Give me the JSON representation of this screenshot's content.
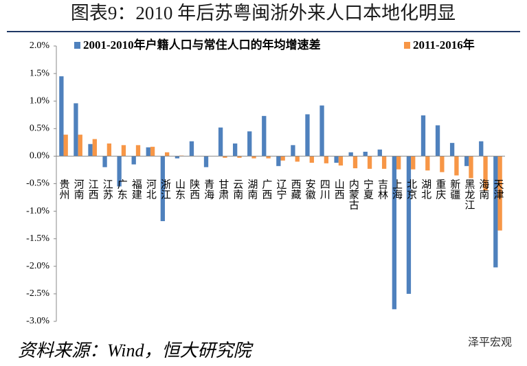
{
  "title": "图表9：2010 年后苏粤闽浙外来人口本地化明显",
  "source": "资料来源：Wind，恒大研究院",
  "watermark": "泽平宏观",
  "chart_data": {
    "type": "bar",
    "categories": [
      "贵州",
      "河南",
      "江西",
      "江苏",
      "广东",
      "福建",
      "河北",
      "浙江",
      "山东",
      "陕西",
      "青海",
      "甘肃",
      "云南",
      "湖南",
      "广西",
      "辽宁",
      "西藏",
      "安徽",
      "四川",
      "山西",
      "内蒙古",
      "宁夏",
      "吉林",
      "上海",
      "北京",
      "湖北",
      "重庆",
      "新疆",
      "黑龙江",
      "海南",
      "天津"
    ],
    "series": [
      {
        "name": "2001-2010年户籍人口与常住人口的年均增速差",
        "color": "#4f81bd",
        "values": [
          1.45,
          0.96,
          0.22,
          -0.2,
          -0.55,
          -0.15,
          0.16,
          -1.18,
          -0.04,
          0.27,
          -0.2,
          0.52,
          0.23,
          0.45,
          0.73,
          -0.18,
          0.2,
          0.76,
          0.92,
          -0.12,
          0.07,
          0.08,
          0.12,
          -2.78,
          -2.5,
          0.74,
          0.56,
          0.24,
          -0.18,
          0.27,
          -2.02
        ]
      },
      {
        "name": "2011-2016年",
        "color": "#f79646",
        "values": [
          0.39,
          0.39,
          0.31,
          0.23,
          0.2,
          0.2,
          0.17,
          0.07,
          0.01,
          0.0,
          0.0,
          -0.03,
          -0.03,
          -0.04,
          -0.04,
          -0.08,
          -0.1,
          -0.12,
          -0.13,
          -0.17,
          -0.22,
          -0.23,
          -0.23,
          -0.24,
          -0.24,
          -0.26,
          -0.29,
          -0.35,
          -0.4,
          -0.62,
          -1.35
        ]
      }
    ],
    "ylim": [
      -3,
      2
    ],
    "yticks": [
      {
        "value": 2,
        "label": "2.0%"
      },
      {
        "value": 1.5,
        "label": "1.5%"
      },
      {
        "value": 1,
        "label": "1.0%"
      },
      {
        "value": 0.5,
        "label": "0.5%"
      },
      {
        "value": 0,
        "label": "0.0%"
      },
      {
        "value": -0.5,
        "label": "-0.5%"
      },
      {
        "value": -1,
        "label": "-1.0%"
      },
      {
        "value": -1.5,
        "label": "-1.5%"
      },
      {
        "value": -2,
        "label": "-2.0%"
      },
      {
        "value": -2.5,
        "label": "-2.5%"
      },
      {
        "value": -3,
        "label": "-3.0%"
      }
    ]
  }
}
